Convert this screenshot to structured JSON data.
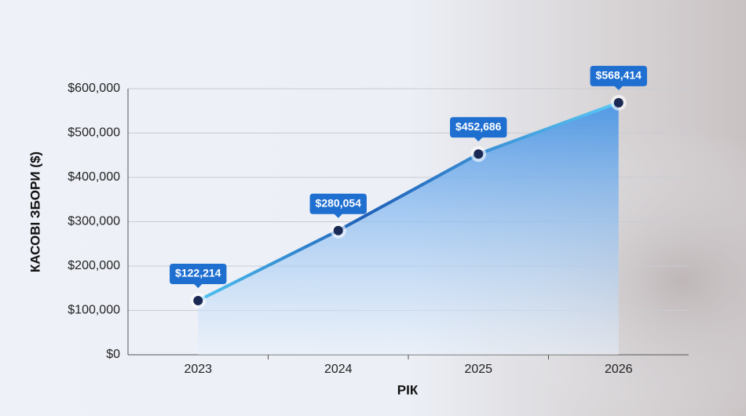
{
  "chart_data": {
    "type": "area-line",
    "y_label": "КАСОВІ ЗБОРИ ($)",
    "x_label": "РІК",
    "categories": [
      "2023",
      "2024",
      "2025",
      "2026"
    ],
    "values": [
      122214,
      280054,
      452686,
      568414
    ],
    "value_labels": [
      "$122,214",
      "$280,054",
      "$452,686",
      "$568,414"
    ],
    "color": "#1f6fd1",
    "point_color": "#1b2a55",
    "ylim": [
      0,
      600000
    ],
    "yticks": [
      {
        "value": 0,
        "label": "$0"
      },
      {
        "value": 100000,
        "label": "$100,000"
      },
      {
        "value": 200000,
        "label": "$200,000"
      },
      {
        "value": 300000,
        "label": "$300,000"
      },
      {
        "value": 400000,
        "label": "$400,000"
      },
      {
        "value": 500000,
        "label": "$500,000"
      },
      {
        "value": 600000,
        "label": "$600,000"
      }
    ],
    "grid": true
  }
}
